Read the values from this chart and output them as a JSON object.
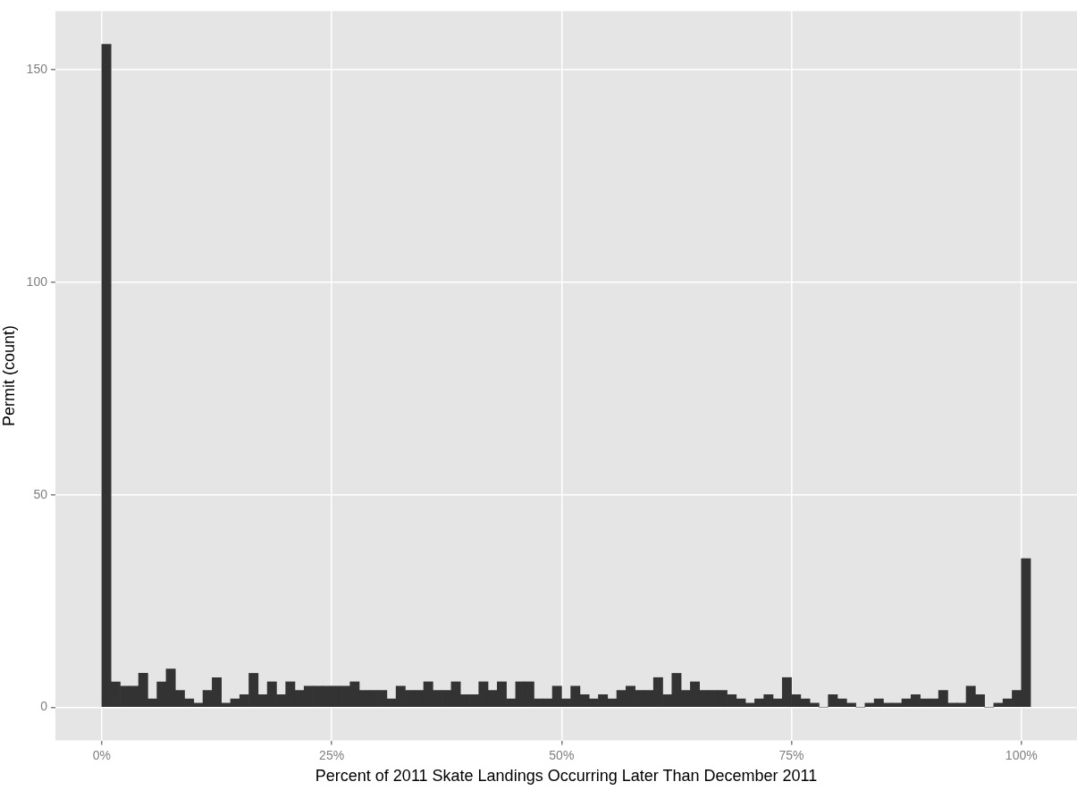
{
  "chart_data": {
    "type": "histogram",
    "xlabel": "Percent of 2011 Skate Landings Occurring Later Than December 2011",
    "ylabel": "Permit (count)",
    "bins": [
      0,
      1,
      2,
      3,
      4,
      5,
      6,
      7,
      8,
      9,
      10,
      11,
      12,
      13,
      14,
      15,
      16,
      17,
      18,
      19,
      20,
      21,
      22,
      23,
      24,
      25,
      26,
      27,
      28,
      29,
      30,
      31,
      32,
      33,
      34,
      35,
      36,
      37,
      38,
      39,
      40,
      41,
      42,
      43,
      44,
      45,
      46,
      47,
      48,
      49,
      50,
      51,
      52,
      53,
      54,
      55,
      56,
      57,
      58,
      59,
      60,
      61,
      62,
      63,
      64,
      65,
      66,
      67,
      68,
      69,
      70,
      71,
      72,
      73,
      74,
      75,
      76,
      77,
      78,
      79,
      80,
      81,
      82,
      83,
      84,
      85,
      86,
      87,
      88,
      89,
      90,
      91,
      92,
      93,
      94,
      95,
      96,
      97,
      98,
      99,
      100,
      101
    ],
    "values": [
      156,
      6,
      5,
      5,
      8,
      2,
      6,
      9,
      4,
      2,
      1,
      4,
      7,
      1,
      2,
      3,
      8,
      3,
      6,
      3,
      6,
      4,
      5,
      5,
      5,
      5,
      5,
      6,
      4,
      4,
      4,
      2,
      5,
      4,
      4,
      6,
      4,
      4,
      6,
      3,
      3,
      6,
      4,
      6,
      2,
      6,
      6,
      2,
      2,
      5,
      2,
      5,
      3,
      2,
      3,
      2,
      4,
      5,
      4,
      4,
      7,
      3,
      8,
      4,
      6,
      4,
      4,
      4,
      3,
      2,
      1,
      2,
      3,
      2,
      7,
      3,
      2,
      1,
      0,
      3,
      2,
      1,
      0,
      1,
      2,
      1,
      1,
      2,
      3,
      2,
      2,
      4,
      1,
      1,
      5,
      3,
      0,
      1,
      2,
      4,
      35
    ],
    "color": "#333333",
    "xlim": [
      -5.05,
      106.05
    ],
    "xticks": [
      {
        "value": 0,
        "label": "0%"
      },
      {
        "value": 25,
        "label": "25%"
      },
      {
        "value": 50,
        "label": "50%"
      },
      {
        "value": 75,
        "label": "75%"
      },
      {
        "value": 100,
        "label": "100%"
      }
    ],
    "ylim": [
      -7.8,
      163.8
    ],
    "yticks": [
      0,
      50,
      100,
      150
    ],
    "grid": true,
    "legend": false
  }
}
